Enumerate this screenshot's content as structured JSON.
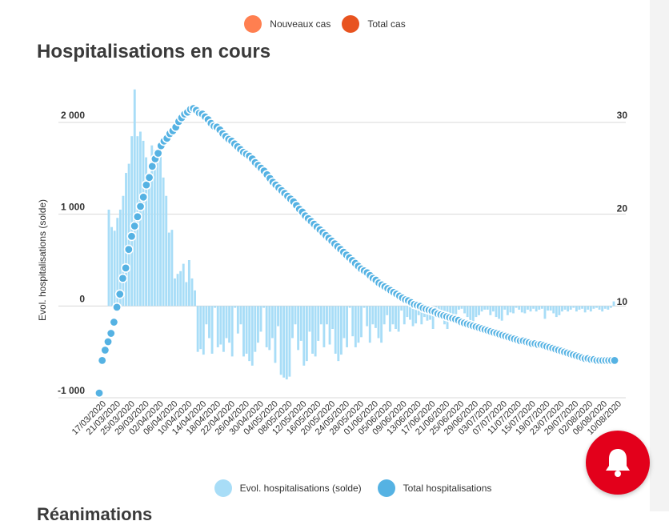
{
  "top_legend": [
    {
      "label": "Nouveaux cas",
      "color": "#ff7f50"
    },
    {
      "label": "Total cas",
      "color": "#e8531f"
    }
  ],
  "title": "Hospitalisations en cours",
  "next_section_title": "Réanimations",
  "bell_icon": "bell-icon",
  "chart_data": {
    "type": "bar",
    "title": "Hospitalisations en cours",
    "ylabel": "Evol. hospitalisations (solde)",
    "ylim": [
      -1000,
      2000
    ],
    "y_ticks": [
      "-1 000",
      "0",
      "1 000",
      "2 000"
    ],
    "y_tick_values": [
      -1000,
      0,
      1000,
      2000
    ],
    "y2_ticks": [
      "10",
      "20",
      "30"
    ],
    "y2_tick_values": [
      10,
      20,
      30
    ],
    "y2lim": [
      0.5,
      30
    ],
    "grid": true,
    "legend_position": "bottom",
    "x_tick_labels": [
      "17/03/2020",
      "21/03/2020",
      "25/03/2020",
      "29/03/2020",
      "02/04/2020",
      "06/04/2020",
      "10/04/2020",
      "14/04/2020",
      "18/04/2020",
      "22/04/2020",
      "26/04/2020",
      "30/04/2020",
      "04/05/2020",
      "08/05/2020",
      "12/05/2020",
      "16/05/2020",
      "20/05/2020",
      "24/05/2020",
      "28/05/2020",
      "01/06/2020",
      "05/06/2020",
      "09/06/2020",
      "13/06/2020",
      "17/06/2020",
      "21/06/2020",
      "25/06/2020",
      "29/06/2020",
      "03/07/2020",
      "07/07/2020",
      "11/07/2020",
      "15/07/2020",
      "19/07/2020",
      "23/07/2020",
      "29/07/2020",
      "02/08/2020",
      "06/08/2020",
      "10/08/2020"
    ],
    "series": [
      {
        "name": "Evol. hospitalisations (solde)",
        "type": "bar",
        "axis": "left",
        "color": "#a8ddf7",
        "values": [
          1050,
          860,
          820,
          960,
          1050,
          1200,
          1450,
          1550,
          1850,
          2360,
          1850,
          1900,
          1800,
          1620,
          1400,
          1750,
          1700,
          1600,
          1800,
          1400,
          1200,
          800,
          830,
          300,
          350,
          380,
          460,
          260,
          500,
          300,
          170,
          -500,
          -470,
          -530,
          -200,
          -350,
          -520,
          -20,
          -450,
          -420,
          -500,
          -350,
          -400,
          -550,
          -20,
          -300,
          -200,
          -550,
          -520,
          -600,
          -650,
          -500,
          -400,
          -280,
          -20,
          -450,
          -480,
          -350,
          -620,
          -220,
          -750,
          -780,
          -800,
          -770,
          -350,
          -200,
          -480,
          -380,
          -650,
          -600,
          -280,
          -520,
          -550,
          -380,
          -200,
          -450,
          -200,
          -420,
          -250,
          -520,
          -600,
          -530,
          -350,
          -450,
          -20,
          -330,
          -450,
          -400,
          -340,
          -20,
          -220,
          -400,
          -200,
          -240,
          -350,
          -400,
          -200,
          -100,
          -280,
          -200,
          -250,
          -280,
          -50,
          -200,
          -120,
          -150,
          -220,
          -190,
          -100,
          -200,
          -120,
          -160,
          -150,
          -250,
          -120,
          -60,
          -100,
          -200,
          -250,
          -170,
          -150,
          -90,
          -40,
          -30,
          -80,
          -120,
          -200,
          -180,
          -120,
          -100,
          -60,
          -40,
          -40,
          -100,
          -60,
          -120,
          -140,
          -160,
          -40,
          -100,
          -70,
          -80,
          -20,
          -40,
          -70,
          -80,
          -40,
          -60,
          -30,
          -60,
          -40,
          -30,
          -140,
          -50,
          -50,
          -80,
          -120,
          -100,
          -60,
          -40,
          -60,
          -40,
          -20,
          -60,
          -40,
          -30,
          -70,
          -40,
          -60,
          -30,
          -20,
          -40,
          -60,
          -30,
          -40,
          -20,
          50
        ]
      },
      {
        "name": "Total hospitalisations",
        "type": "line",
        "axis": "right",
        "color": "#55b2e3",
        "values": [
          1.0,
          4.5,
          5.6,
          6.5,
          7.4,
          8.6,
          10.2,
          11.6,
          13.3,
          14.4,
          16.4,
          17.8,
          18.9,
          19.9,
          21.0,
          22.0,
          23.3,
          24.1,
          25.3,
          26.1,
          26.7,
          27.5,
          28.0,
          28.3,
          28.8,
          29.1,
          29.5,
          30.1,
          30.5,
          30.9,
          31.1,
          31.4,
          31.5,
          31.3,
          31.0,
          30.9,
          30.6,
          30.3,
          29.9,
          29.6,
          29.5,
          29.2,
          28.8,
          28.5,
          28.2,
          28.0,
          27.7,
          27.4,
          27.1,
          26.8,
          26.6,
          26.4,
          26.1,
          25.7,
          25.4,
          25.1,
          24.8,
          24.4,
          24.0,
          23.6,
          23.3,
          23.0,
          22.7,
          22.4,
          22.1,
          21.8,
          21.5,
          21.1,
          20.7,
          20.4,
          20.0,
          19.7,
          19.4,
          19.1,
          18.8,
          18.5,
          18.2,
          17.9,
          17.6,
          17.3,
          17.0,
          16.7,
          16.4,
          16.1,
          15.8,
          15.5,
          15.2,
          14.9,
          14.6,
          14.3,
          14.1,
          13.9,
          13.6,
          13.3,
          13.1,
          12.8,
          12.6,
          12.4,
          12.2,
          12.0,
          11.8,
          11.6,
          11.4,
          11.2,
          11.0,
          10.9,
          10.7,
          10.5,
          10.4,
          10.3,
          10.1,
          10.0,
          9.9,
          9.8,
          9.7,
          9.5,
          9.4,
          9.3,
          9.2,
          9.1,
          9.0,
          8.9,
          8.8,
          8.6,
          8.5,
          8.4,
          8.3,
          8.2,
          8.1,
          8.0,
          7.9,
          7.8,
          7.7,
          7.6,
          7.5,
          7.4,
          7.3,
          7.2,
          7.1,
          7.0,
          6.9,
          6.8,
          6.7,
          6.6,
          6.6,
          6.5,
          6.4,
          6.3,
          6.3,
          6.2,
          6.2,
          6.1,
          6.0,
          5.9,
          5.8,
          5.7,
          5.6,
          5.5,
          5.4,
          5.3,
          5.2,
          5.1,
          5.0,
          4.9,
          4.8,
          4.7,
          4.7,
          4.6,
          4.6,
          4.5,
          4.5,
          4.5,
          4.5,
          4.5,
          4.5,
          4.5
        ]
      }
    ]
  }
}
